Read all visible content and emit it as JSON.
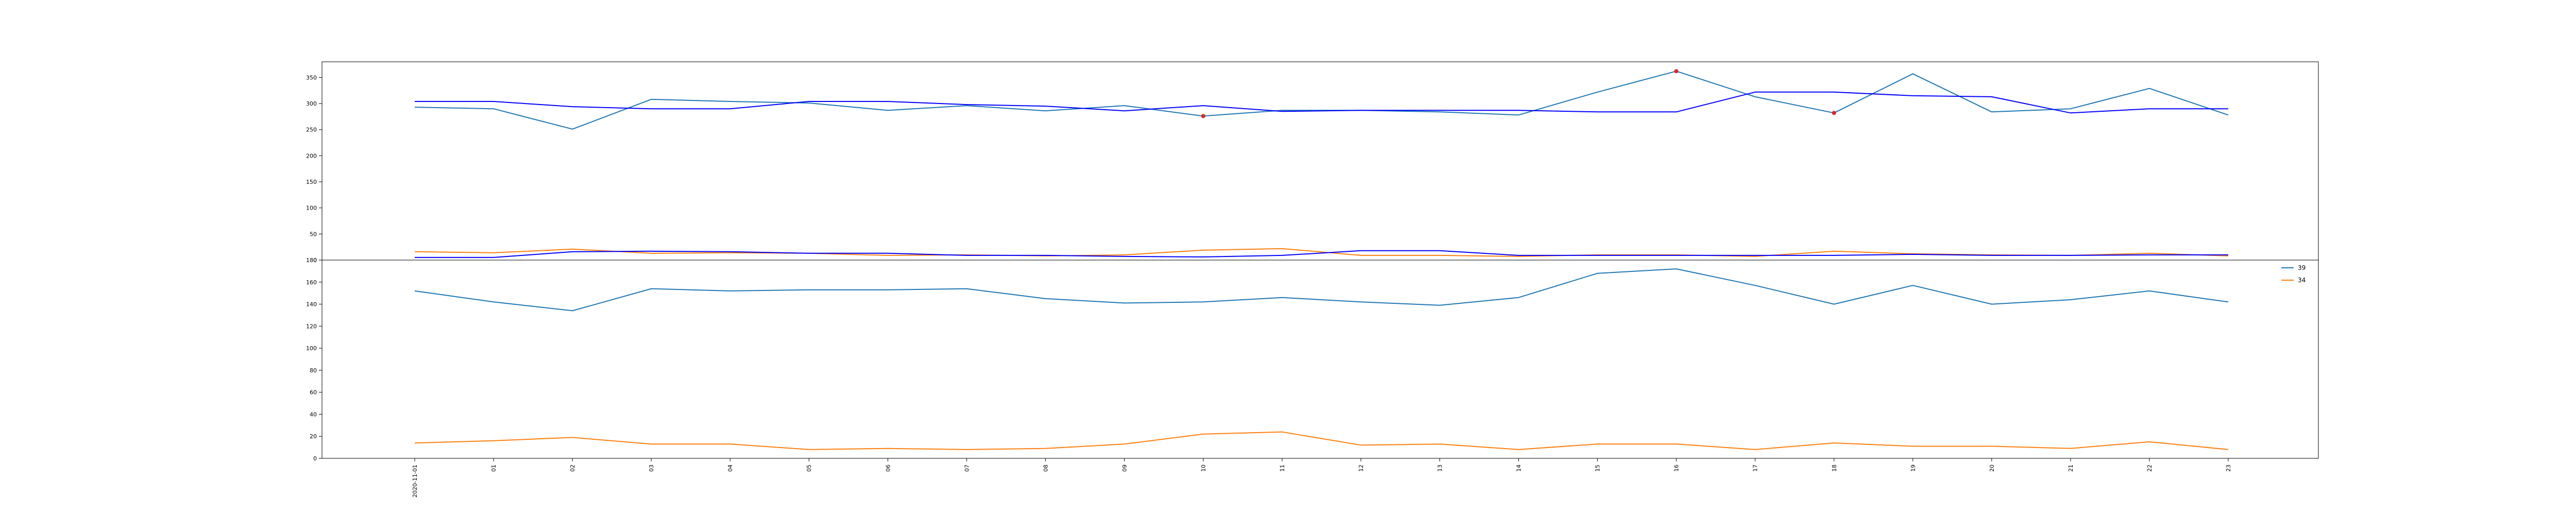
{
  "chart_data": [
    {
      "type": "line",
      "ylim": [
        0,
        380
      ],
      "yticks": [
        0,
        50,
        100,
        150,
        200,
        250,
        300,
        350
      ],
      "grid": false,
      "series": [
        {
          "color": "#1f77b4",
          "values": [
            293,
            290,
            251,
            308,
            304,
            301,
            287,
            296,
            286,
            296,
            276,
            287,
            287,
            284,
            278,
            322,
            362,
            313,
            282,
            357,
            284,
            290,
            329,
            278
          ]
        },
        {
          "color": "#0000ff",
          "values": [
            304,
            304,
            294,
            290,
            290,
            304,
            304,
            298,
            295,
            286,
            296,
            285,
            287,
            287,
            287,
            284,
            284,
            322,
            322,
            315,
            313,
            282,
            290,
            290
          ]
        },
        {
          "color": "#ff7f0e",
          "values": [
            16,
            14,
            21,
            13,
            14,
            13,
            9,
            10,
            8,
            10,
            19,
            22,
            9,
            9,
            7,
            10,
            10,
            7,
            17,
            12,
            10,
            9,
            13,
            8
          ]
        },
        {
          "color": "#0000ff",
          "values": [
            5,
            5,
            16,
            17,
            16,
            13,
            13,
            9,
            9,
            7,
            6,
            9,
            18,
            18,
            9,
            9,
            9,
            9,
            9,
            11,
            9,
            9,
            10,
            10
          ]
        }
      ],
      "markers": {
        "color": "#d62728",
        "indices": [
          10,
          16,
          18
        ],
        "series_index": 0
      }
    },
    {
      "type": "line",
      "ylim": [
        0,
        180
      ],
      "yticks": [
        0,
        20,
        40,
        60,
        80,
        100,
        120,
        140,
        160,
        180
      ],
      "grid": false,
      "legend_position": "upper-right",
      "series": [
        {
          "name": "39",
          "color": "#1f77b4",
          "values": [
            152,
            142,
            134,
            154,
            152,
            153,
            153,
            154,
            145,
            141,
            142,
            146,
            142,
            139,
            146,
            168,
            172,
            157,
            140,
            157,
            140,
            144,
            152,
            142
          ]
        },
        {
          "name": "34",
          "color": "#ff7f0e",
          "values": [
            14,
            16,
            19,
            13,
            13,
            8,
            9,
            8,
            9,
            13,
            22,
            24,
            12,
            13,
            8,
            13,
            13,
            8,
            14,
            11,
            11,
            9,
            15,
            8
          ]
        }
      ]
    }
  ],
  "x_tick_labels": [
    "2020-11-01",
    "01",
    "02",
    "03",
    "04",
    "05",
    "06",
    "07",
    "08",
    "09",
    "10",
    "11",
    "12",
    "13",
    "14",
    "15",
    "16",
    "17",
    "18",
    "19",
    "20",
    "21",
    "22",
    "23"
  ]
}
